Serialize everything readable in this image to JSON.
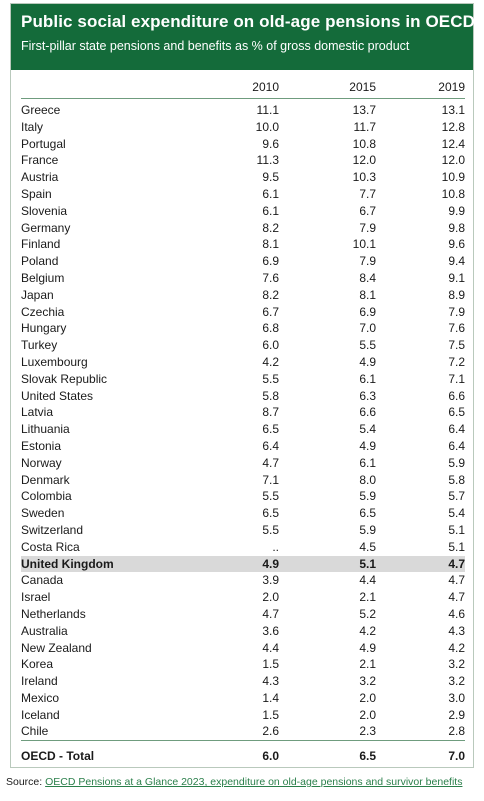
{
  "title": "Public social expenditure on old-age pensions in OECD",
  "subtitle": "First-pillar state pensions and benefits as % of gross domestic product",
  "colors": {
    "banner": "#146b3a",
    "highlight": "#d9d9d9",
    "link": "#2a7f4a"
  },
  "table": {
    "columns": [
      "",
      "2010",
      "2015",
      "2019"
    ],
    "rows": [
      [
        "Greece",
        "11.1",
        "13.7",
        "13.1"
      ],
      [
        "Italy",
        "10.0",
        "11.7",
        "12.8"
      ],
      [
        "Portugal",
        "9.6",
        "10.8",
        "12.4"
      ],
      [
        "France",
        "11.3",
        "12.0",
        "12.0"
      ],
      [
        "Austria",
        "9.5",
        "10.3",
        "10.9"
      ],
      [
        "Spain",
        "6.1",
        "7.7",
        "10.8"
      ],
      [
        "Slovenia",
        "6.1",
        "6.7",
        "9.9"
      ],
      [
        "Germany",
        "8.2",
        "7.9",
        "9.8"
      ],
      [
        "Finland",
        "8.1",
        "10.1",
        "9.6"
      ],
      [
        "Poland",
        "6.9",
        "7.9",
        "9.4"
      ],
      [
        "Belgium",
        "7.6",
        "8.4",
        "9.1"
      ],
      [
        "Japan",
        "8.2",
        "8.1",
        "8.9"
      ],
      [
        "Czechia",
        "6.7",
        "6.9",
        "7.9"
      ],
      [
        "Hungary",
        "6.8",
        "7.0",
        "7.6"
      ],
      [
        "Turkey",
        "6.0",
        "5.5",
        "7.5"
      ],
      [
        "Luxembourg",
        "4.2",
        "4.9",
        "7.2"
      ],
      [
        "Slovak Republic",
        "5.5",
        "6.1",
        "7.1"
      ],
      [
        "United States",
        "5.8",
        "6.3",
        "6.6"
      ],
      [
        "Latvia",
        "8.7",
        "6.6",
        "6.5"
      ],
      [
        "Lithuania",
        "6.5",
        "5.4",
        "6.4"
      ],
      [
        "Estonia",
        "6.4",
        "4.9",
        "6.4"
      ],
      [
        "Norway",
        "4.7",
        "6.1",
        "5.9"
      ],
      [
        "Denmark",
        "7.1",
        "8.0",
        "5.8"
      ],
      [
        "Colombia",
        "5.5",
        "5.9",
        "5.7"
      ],
      [
        "Sweden",
        "6.5",
        "6.5",
        "5.4"
      ],
      [
        "Switzerland",
        "5.5",
        "5.9",
        "5.1"
      ],
      [
        "Costa Rica",
        "..",
        "4.5",
        "5.1"
      ],
      [
        "United Kingdom",
        "4.9",
        "5.1",
        "4.7"
      ],
      [
        "Canada",
        "3.9",
        "4.4",
        "4.7"
      ],
      [
        "Israel",
        "2.0",
        "2.1",
        "4.7"
      ],
      [
        "Netherlands",
        "4.7",
        "5.2",
        "4.6"
      ],
      [
        "Australia",
        "3.6",
        "4.2",
        "4.3"
      ],
      [
        "New Zealand",
        "4.4",
        "4.9",
        "4.2"
      ],
      [
        "Korea",
        "1.5",
        "2.1",
        "3.2"
      ],
      [
        "Ireland",
        "4.3",
        "3.2",
        "3.2"
      ],
      [
        "Mexico",
        "1.4",
        "2.0",
        "3.0"
      ],
      [
        "Iceland",
        "1.5",
        "2.0",
        "2.9"
      ],
      [
        "Chile",
        "2.6",
        "2.3",
        "2.8"
      ]
    ],
    "highlight_row": "United Kingdom",
    "total": [
      "OECD - Total",
      "6.0",
      "6.5",
      "7.0"
    ]
  },
  "source": {
    "label": "Source:",
    "link_text": "OECD Pensions at a Glance 2023, expenditure on old-age pensions and survivor benefits"
  }
}
